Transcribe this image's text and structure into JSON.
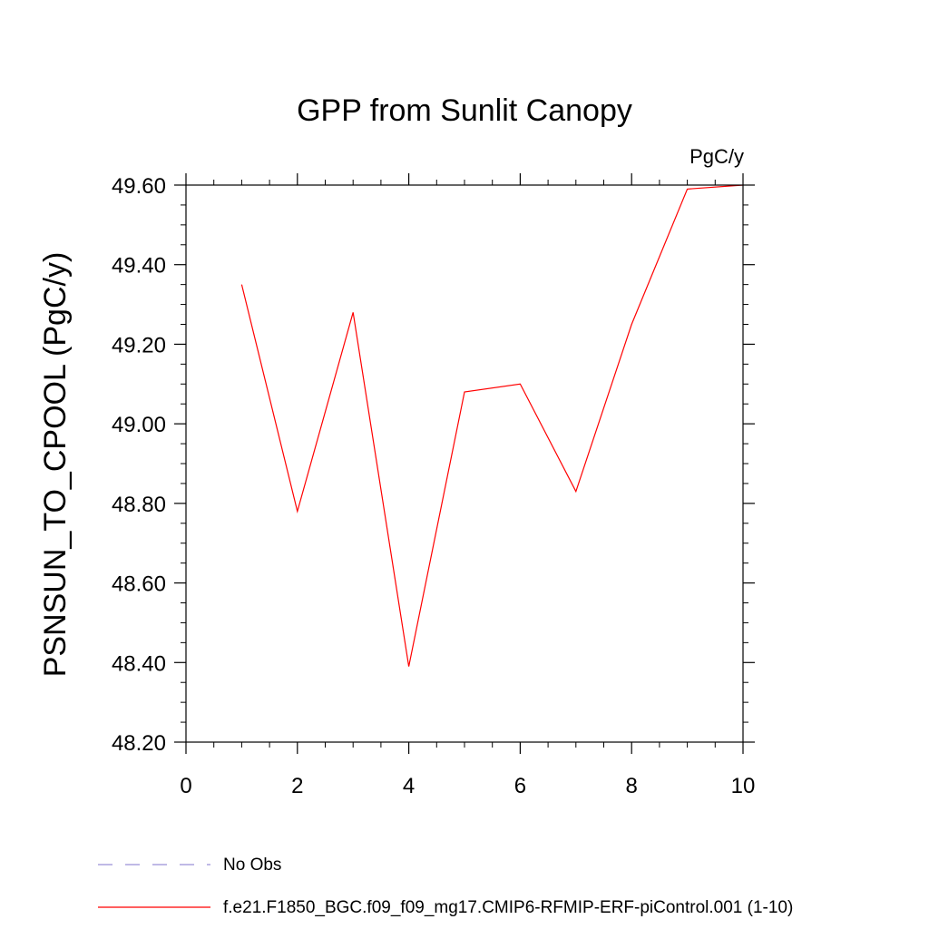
{
  "chart_data": {
    "type": "line",
    "title": "GPP from Sunlit Canopy",
    "units_label": "PgC/y",
    "ylabel": "PSNSUN_TO_CPOOL  (PgC/y)",
    "xlabel": "",
    "xlim": [
      0,
      10
    ],
    "ylim": [
      48.2,
      49.6
    ],
    "x_ticks": [
      0,
      2,
      4,
      6,
      8,
      10
    ],
    "x_tick_labels": [
      "0",
      "2",
      "4",
      "6",
      "8",
      "10"
    ],
    "y_ticks": [
      48.2,
      48.4,
      48.6,
      48.8,
      49.0,
      49.2,
      49.4,
      49.6
    ],
    "y_tick_labels": [
      "48.20",
      "48.40",
      "48.60",
      "48.80",
      "49.00",
      "49.20",
      "49.40",
      "49.60"
    ],
    "grid": false,
    "legend_position": "bottom",
    "series": [
      {
        "name": "f.e21.F1850_BGC.f09_f09_mg17.CMIP6-RFMIP-ERF-piControl.001 (1-10)",
        "color": "#ff0000",
        "dash": "solid",
        "x": [
          1,
          2,
          3,
          4,
          5,
          6,
          7,
          8,
          9,
          10
        ],
        "y": [
          49.35,
          48.78,
          49.28,
          48.39,
          49.08,
          49.1,
          48.83,
          49.25,
          49.59,
          49.6
        ]
      }
    ],
    "legend": [
      {
        "label": "No Obs",
        "color": "#9a8fd8",
        "dash": "dashed"
      },
      {
        "label": "f.e21.F1850_BGC.f09_f09_mg17.CMIP6-RFMIP-ERF-piControl.001 (1-10)",
        "color": "#ff0000",
        "dash": "solid"
      }
    ]
  }
}
